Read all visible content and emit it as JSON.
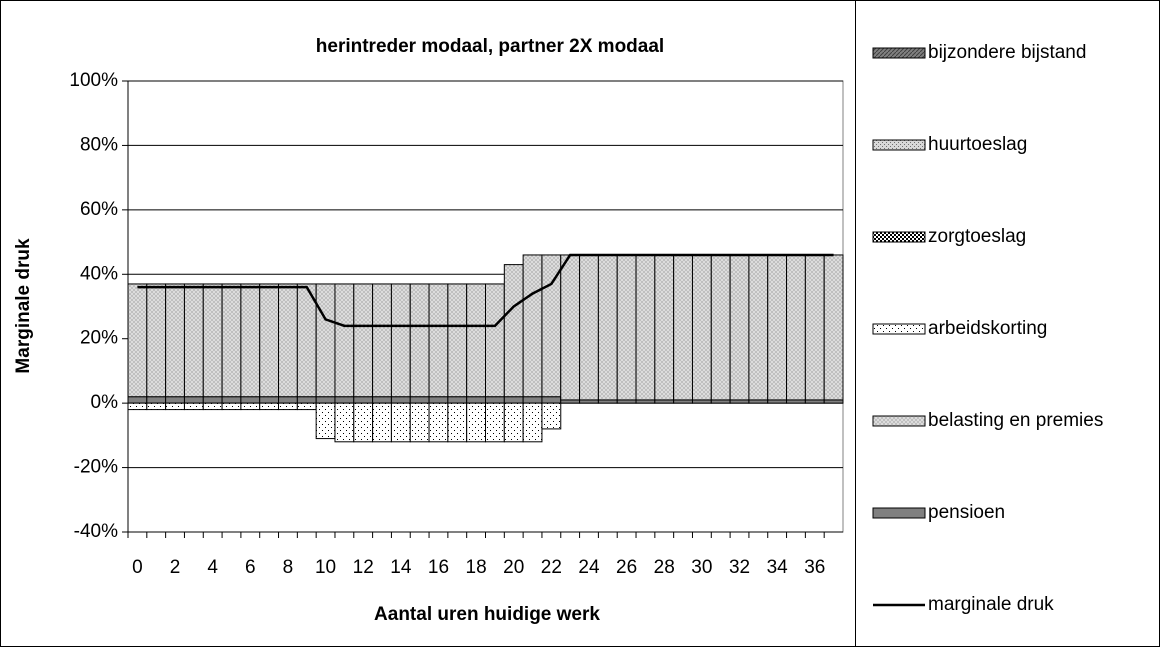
{
  "chart_data": {
    "type": "bar",
    "stacked": true,
    "title": "herintreder modaal, partner 2X modaal",
    "x_label": "Aantal uren huidige werk",
    "y_label": "Marginale druk",
    "categories": [
      0,
      null,
      2,
      null,
      4,
      null,
      6,
      null,
      8,
      null,
      10,
      null,
      12,
      null,
      14,
      null,
      16,
      null,
      18,
      null,
      20,
      null,
      22,
      null,
      24,
      null,
      26,
      null,
      28,
      null,
      30,
      null,
      32,
      null,
      34,
      null,
      36,
      null
    ],
    "ylim": [
      -40,
      100
    ],
    "yticks": [
      {
        "value": -40,
        "label": "-40%"
      },
      {
        "value": -20,
        "label": "-20%"
      },
      {
        "value": 0,
        "label": "0%"
      },
      {
        "value": 20,
        "label": "20%"
      },
      {
        "value": 40,
        "label": "40%"
      },
      {
        "value": 60,
        "label": "60%"
      },
      {
        "value": 80,
        "label": "80%"
      },
      {
        "value": 100,
        "label": "100%"
      }
    ],
    "grid": true,
    "legend": "right",
    "series": [
      {
        "name": "bijzondere bijstand",
        "color": "#808080",
        "values": [
          0,
          0,
          0,
          0,
          0,
          0,
          0,
          0,
          0,
          0,
          0,
          0,
          0,
          0,
          0,
          0,
          0,
          0,
          0,
          0,
          0,
          0,
          0,
          0,
          0,
          0,
          0,
          0,
          0,
          0,
          0,
          0,
          0,
          0,
          0,
          0,
          0,
          0
        ]
      },
      {
        "name": "huurtoeslag",
        "color": "#c0c0c0",
        "values": [
          0,
          0,
          0,
          0,
          0,
          0,
          0,
          0,
          0,
          0,
          0,
          0,
          0,
          0,
          0,
          0,
          0,
          0,
          0,
          0,
          0,
          0,
          0,
          0,
          0,
          0,
          0,
          0,
          0,
          0,
          0,
          0,
          0,
          0,
          0,
          0,
          0,
          0
        ]
      },
      {
        "name": "zorgtoeslag",
        "color": "#000000",
        "values": [
          0,
          0,
          0,
          0,
          0,
          0,
          0,
          0,
          0,
          0,
          0,
          0,
          0,
          0,
          0,
          0,
          0,
          0,
          0,
          0,
          0,
          0,
          0,
          0,
          0,
          0,
          0,
          0,
          0,
          0,
          0,
          0,
          0,
          0,
          0,
          0,
          0,
          0
        ]
      },
      {
        "name": "arbeidskorting",
        "color": "#ffffff",
        "values": [
          -2,
          -2,
          -2,
          -2,
          -2,
          -2,
          -2,
          -2,
          -2,
          -2,
          -11,
          -12,
          -12,
          -12,
          -12,
          -12,
          -12,
          -12,
          -12,
          -12,
          -12,
          -12,
          -8,
          0,
          0,
          0,
          0,
          0,
          0,
          0,
          0,
          0,
          0,
          0,
          0,
          0,
          0,
          0
        ]
      },
      {
        "name": "belasting en premies",
        "color": "#e0e0e0",
        "values": [
          35,
          35,
          35,
          35,
          35,
          35,
          35,
          35,
          35,
          35,
          35,
          35,
          35,
          35,
          35,
          35,
          35,
          35,
          35,
          35,
          41,
          44,
          44,
          45,
          45,
          45,
          45,
          45,
          45,
          45,
          45,
          45,
          45,
          45,
          45,
          45,
          45,
          45
        ]
      },
      {
        "name": "pensioen",
        "color": "#808080",
        "values": [
          2,
          2,
          2,
          2,
          2,
          2,
          2,
          2,
          2,
          2,
          2,
          2,
          2,
          2,
          2,
          2,
          2,
          2,
          2,
          2,
          2,
          2,
          2,
          1,
          1,
          1,
          1,
          1,
          1,
          1,
          1,
          1,
          1,
          1,
          1,
          1,
          1,
          1
        ]
      },
      {
        "name": "marginale druk",
        "type": "line",
        "color": "#000000",
        "values": [
          36,
          36,
          36,
          36,
          36,
          36,
          36,
          36,
          36,
          36,
          26,
          24,
          24,
          24,
          24,
          24,
          24,
          24,
          24,
          24,
          30,
          34,
          37,
          46,
          46,
          46,
          46,
          46,
          46,
          46,
          46,
          46,
          46,
          46,
          46,
          46,
          46,
          46
        ]
      }
    ]
  }
}
